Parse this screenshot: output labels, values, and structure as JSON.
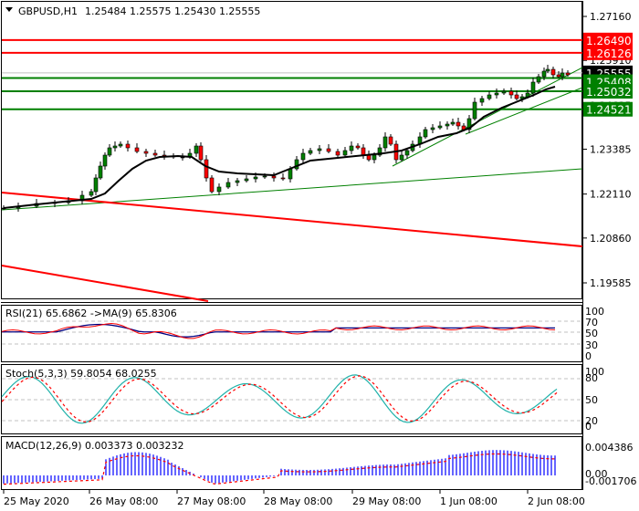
{
  "header": {
    "symbol": "GBPUSD,H1",
    "ohlc": "1.25484 1.25575 1.25430 1.25555",
    "collapse_icon": "triangle-down-icon"
  },
  "chart_data": [
    {
      "type": "candlestick",
      "title": "GBPUSD,H1 1.25484 1.25575 1.25430 1.25555",
      "price_axis": {
        "ticks": [
          "1.27160",
          "1.25910",
          "1.24635",
          "1.23385",
          "1.22110",
          "1.20860",
          "1.19585"
        ],
        "ylim": [
          1.193,
          1.276
        ]
      },
      "open": 1.25484,
      "high": 1.25575,
      "low": 1.2543,
      "close": 1.25555,
      "current_price_label": "1.25555",
      "horizontal_levels": [
        {
          "value": 1.2649,
          "label": "1.26490",
          "color": "#ff0000"
        },
        {
          "value": 1.26126,
          "label": "1.26126",
          "color": "#ff0000"
        },
        {
          "value": 1.25408,
          "label": "1.25408",
          "color": "#008000"
        },
        {
          "value": 1.25032,
          "label": "1.25032",
          "color": "#008000"
        },
        {
          "value": 1.24521,
          "label": "1.24521",
          "color": "#008000"
        }
      ],
      "trendlines": [
        {
          "color": "#008000",
          "desc": "long-term rising support from 25 May to 2 Jun"
        },
        {
          "color": "#008000",
          "desc": "short-term rising channel from 29 May"
        },
        {
          "color": "#ff0000",
          "desc": "falling line from 25 May"
        },
        {
          "color": "#ff0000",
          "desc": "lower falling line"
        }
      ],
      "moving_average_color": "#000000",
      "x_labels": [
        "25 May 2020",
        "26 May 08:00",
        "27 May 08:00",
        "28 May 08:00",
        "29 May 08:00",
        "1 Jun 08:00",
        "2 Jun 08:00"
      ]
    },
    {
      "type": "line",
      "title": "RSI(21) 65.6862 ->MA(9) 65.8306",
      "series": [
        {
          "name": "RSI(21)",
          "last": 65.6862,
          "color": "#ff0000"
        },
        {
          "name": "MA(9)",
          "last": 65.8306,
          "color": "#000080"
        }
      ],
      "ylim": [
        0,
        100
      ],
      "levels": [
        70,
        50,
        30
      ],
      "ticks": [
        "100",
        "70",
        "50",
        "30",
        "0"
      ]
    },
    {
      "type": "line",
      "title": "Stoch(5,3,3) 59.8054 68.0255",
      "series": [
        {
          "name": "%K",
          "last": 59.8054,
          "color": "#20b2aa"
        },
        {
          "name": "%D",
          "last": 68.0255,
          "color": "#ff0000"
        }
      ],
      "ylim": [
        0,
        100
      ],
      "levels": [
        80,
        50,
        20
      ],
      "ticks": [
        "100",
        "80",
        "50",
        "20",
        "0"
      ]
    },
    {
      "type": "bar",
      "title": "MACD(12,26,9) 0.003373 0.003232",
      "series": [
        {
          "name": "MACD",
          "last": 0.003373,
          "color": "#0000ff"
        },
        {
          "name": "Signal",
          "last": 0.003232,
          "color": "#ff0000"
        }
      ],
      "ticks": [
        "0.004386",
        "0.00",
        "-0.001706"
      ],
      "ylim": [
        -0.001706,
        0.004386
      ]
    }
  ],
  "rsi": {
    "label": "RSI(21) 65.6862 ->MA(9) 65.8306",
    "ticks": [
      "100",
      "70",
      "50",
      "30",
      "0"
    ]
  },
  "stoch": {
    "label": "Stoch(5,3,3) 59.8054 68.0255",
    "ticks": [
      "100",
      "80",
      "50",
      "20",
      "0"
    ]
  },
  "macd": {
    "label": "MACD(12,26,9) 0.003373 0.003232",
    "ticks": [
      "0.004386",
      "0.00",
      "-0.001706"
    ]
  },
  "price_axis": {
    "ticks": [
      "1.27160",
      "1.25910",
      "1.24635",
      "1.23385",
      "1.22110",
      "1.20860",
      "1.19585"
    ],
    "tags": [
      "1.26490",
      "1.26126",
      "1.25555",
      "1.25408",
      "1.25032",
      "1.24521"
    ]
  },
  "time_axis": [
    "25 May 2020",
    "26 May 08:00",
    "27 May 08:00",
    "28 May 08:00",
    "29 May 08:00",
    "1 Jun 08:00",
    "2 Jun 08:00"
  ]
}
